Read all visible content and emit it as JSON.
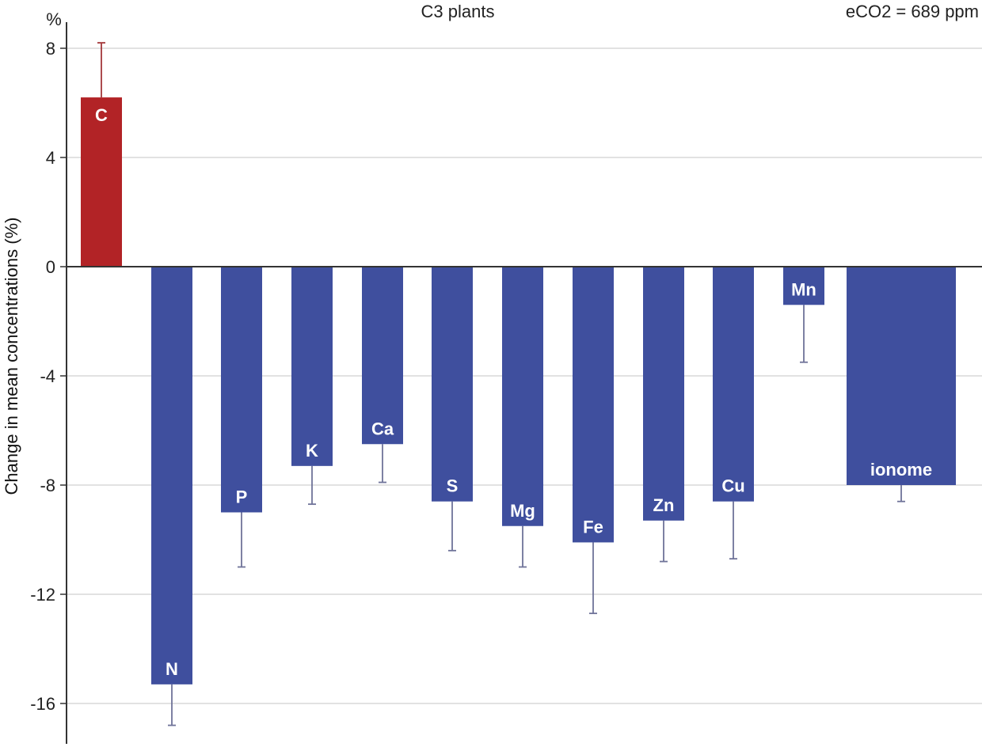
{
  "chart_data": {
    "type": "bar",
    "title": "C3 plants",
    "annotation": "eCO2 = 689 ppm",
    "ylabel": "Change in mean concentrations (%)",
    "yunit": "%",
    "xlabel": "",
    "ylim": [
      -17.5,
      9
    ],
    "yticks": [
      8,
      4,
      0,
      -4,
      -8,
      -12,
      -16
    ],
    "grid": true,
    "categories": [
      "C",
      "N",
      "P",
      "K",
      "Ca",
      "S",
      "Mg",
      "Fe",
      "Zn",
      "Cu",
      "Mn",
      "ionome"
    ],
    "values": [
      6.2,
      -15.3,
      -9.0,
      -7.3,
      -6.5,
      -8.6,
      -9.5,
      -10.1,
      -9.3,
      -8.6,
      -1.4,
      -8.0
    ],
    "error": [
      2.0,
      1.5,
      2.0,
      1.4,
      1.4,
      1.8,
      1.5,
      2.6,
      1.5,
      2.1,
      2.1,
      0.6
    ],
    "colors": {
      "positive": "#b22326",
      "negative": "#3f4f9e",
      "error_positive": "#a3373a",
      "error_negative": "#6f7399",
      "grid": "#d9d9d9",
      "axis": "#333333"
    }
  }
}
